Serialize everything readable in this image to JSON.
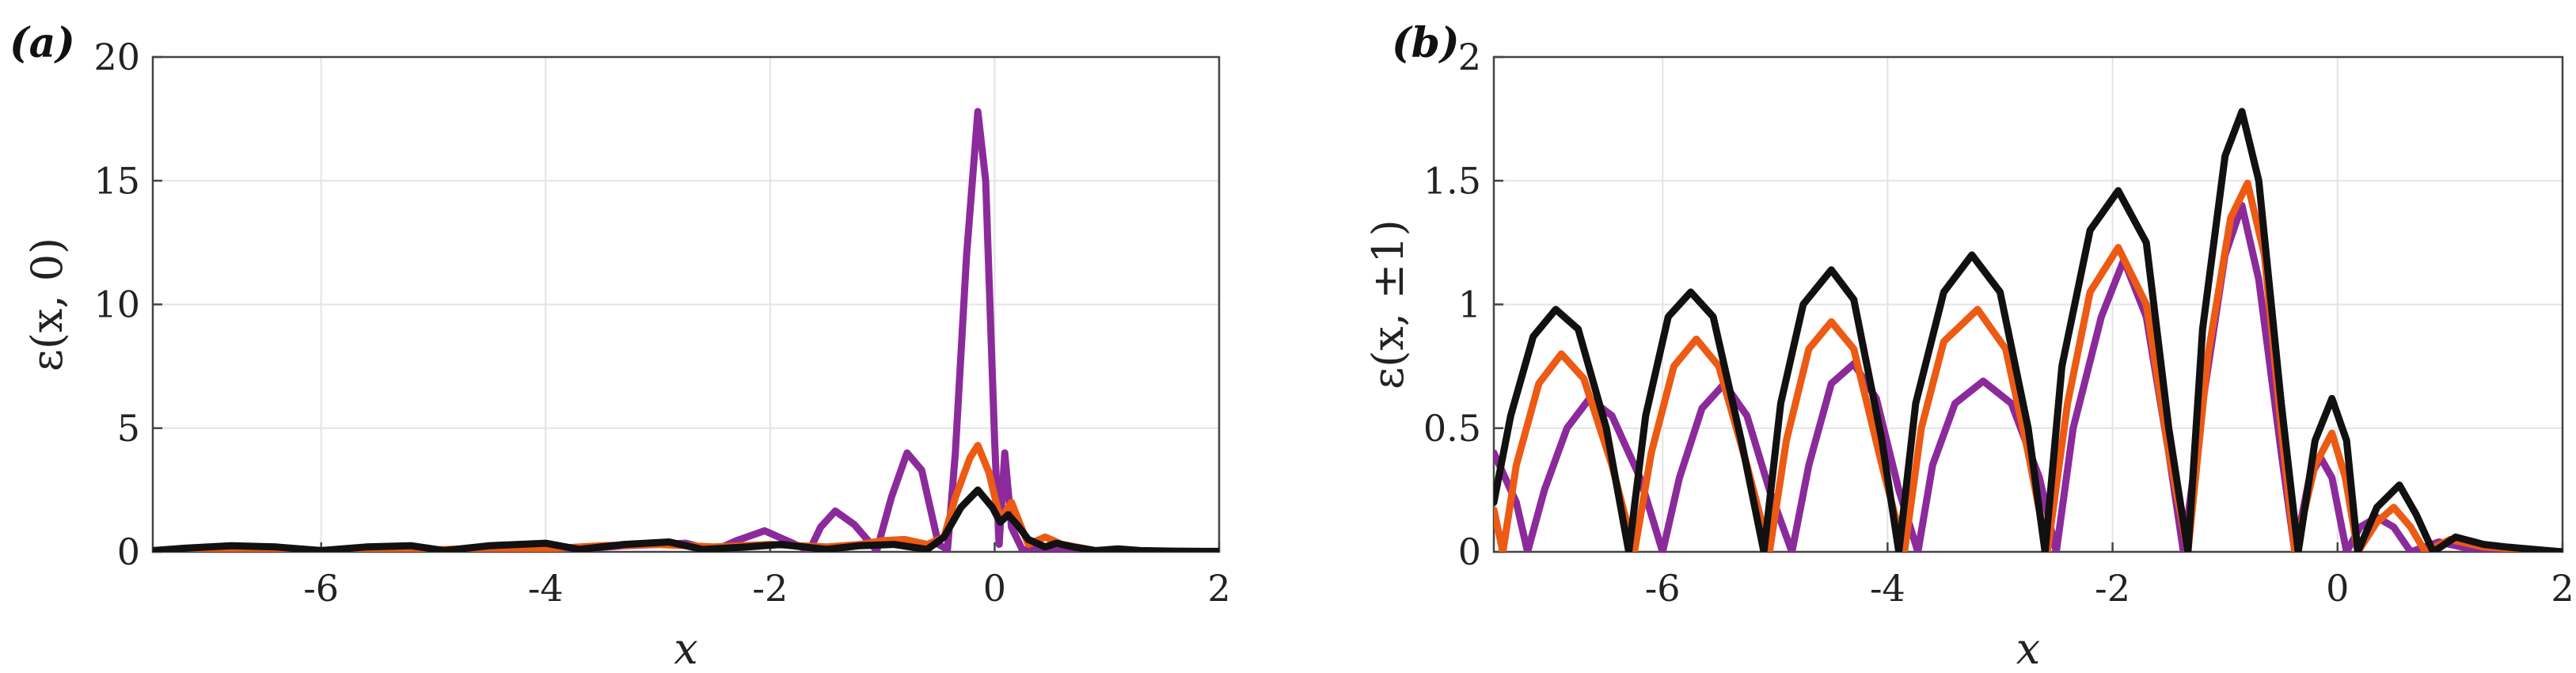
{
  "chart_data": [
    {
      "type": "line",
      "panel_label": "(a)",
      "xlabel": "x",
      "ylabel": "ε(x, 0)",
      "xlim": [
        -7.5,
        2
      ],
      "ylim": [
        0,
        20
      ],
      "xticks": [
        -6,
        -4,
        -2,
        0,
        2
      ],
      "yticks": [
        0,
        5,
        10,
        15,
        20
      ],
      "grid": true,
      "series": [
        {
          "name": "purple",
          "color": "#8B2A9B",
          "points": [
            [
              -7.5,
              0
            ],
            [
              -7.0,
              0.02
            ],
            [
              -6.5,
              0.05
            ],
            [
              -6.0,
              0.03
            ],
            [
              -5.5,
              0.06
            ],
            [
              -5.0,
              0.04
            ],
            [
              -4.5,
              0.08
            ],
            [
              -4.0,
              0.06
            ],
            [
              -3.6,
              0.15
            ],
            [
              -3.3,
              0.25
            ],
            [
              -3.0,
              0.3
            ],
            [
              -2.75,
              0.35
            ],
            [
              -2.5,
              0.05
            ],
            [
              -2.3,
              0.45
            ],
            [
              -2.05,
              0.85
            ],
            [
              -1.85,
              0.45
            ],
            [
              -1.65,
              0.05
            ],
            [
              -1.55,
              1.0
            ],
            [
              -1.42,
              1.65
            ],
            [
              -1.25,
              1.1
            ],
            [
              -1.05,
              0.05
            ],
            [
              -0.92,
              2.2
            ],
            [
              -0.78,
              4.0
            ],
            [
              -0.65,
              3.3
            ],
            [
              -0.5,
              0.3
            ],
            [
              -0.42,
              0.1
            ],
            [
              -0.35,
              4.0
            ],
            [
              -0.25,
              12.0
            ],
            [
              -0.15,
              17.8
            ],
            [
              -0.08,
              15.0
            ],
            [
              0.0,
              4.5
            ],
            [
              0.04,
              0.3
            ],
            [
              0.09,
              4.0
            ],
            [
              0.15,
              1.0
            ],
            [
              0.25,
              0.05
            ],
            [
              0.35,
              0.2
            ],
            [
              0.5,
              0.05
            ],
            [
              0.8,
              0.02
            ],
            [
              1.2,
              0.02
            ],
            [
              2.0,
              0.01
            ]
          ]
        },
        {
          "name": "orange",
          "color": "#EC5A14",
          "points": [
            [
              -7.5,
              0
            ],
            [
              -7.0,
              0.05
            ],
            [
              -6.5,
              0.08
            ],
            [
              -6.0,
              0.06
            ],
            [
              -5.5,
              0.1
            ],
            [
              -5.0,
              0.08
            ],
            [
              -4.5,
              0.15
            ],
            [
              -4.0,
              0.12
            ],
            [
              -3.5,
              0.25
            ],
            [
              -3.0,
              0.3
            ],
            [
              -2.5,
              0.2
            ],
            [
              -2.0,
              0.3
            ],
            [
              -1.5,
              0.2
            ],
            [
              -1.2,
              0.3
            ],
            [
              -1.0,
              0.45
            ],
            [
              -0.8,
              0.5
            ],
            [
              -0.6,
              0.3
            ],
            [
              -0.45,
              0.6
            ],
            [
              -0.35,
              2.2
            ],
            [
              -0.22,
              3.8
            ],
            [
              -0.15,
              4.3
            ],
            [
              -0.05,
              3.2
            ],
            [
              0.05,
              1.3
            ],
            [
              0.15,
              2.0
            ],
            [
              0.22,
              1.2
            ],
            [
              0.3,
              0.3
            ],
            [
              0.45,
              0.6
            ],
            [
              0.6,
              0.3
            ],
            [
              0.9,
              0.05
            ],
            [
              1.3,
              0.03
            ],
            [
              2.0,
              0.01
            ]
          ]
        },
        {
          "name": "black",
          "color": "#111111",
          "points": [
            [
              -7.5,
              0.05
            ],
            [
              -7.2,
              0.15
            ],
            [
              -6.8,
              0.25
            ],
            [
              -6.4,
              0.2
            ],
            [
              -6.0,
              0.05
            ],
            [
              -5.6,
              0.2
            ],
            [
              -5.2,
              0.25
            ],
            [
              -4.9,
              0.05
            ],
            [
              -4.5,
              0.25
            ],
            [
              -4.0,
              0.35
            ],
            [
              -3.7,
              0.1
            ],
            [
              -3.3,
              0.3
            ],
            [
              -2.9,
              0.4
            ],
            [
              -2.6,
              0.1
            ],
            [
              -2.2,
              0.2
            ],
            [
              -1.9,
              0.3
            ],
            [
              -1.5,
              0.1
            ],
            [
              -1.2,
              0.25
            ],
            [
              -0.9,
              0.3
            ],
            [
              -0.6,
              0.1
            ],
            [
              -0.45,
              0.6
            ],
            [
              -0.3,
              1.8
            ],
            [
              -0.15,
              2.5
            ],
            [
              -0.02,
              1.8
            ],
            [
              0.05,
              1.2
            ],
            [
              0.12,
              1.5
            ],
            [
              0.2,
              1.1
            ],
            [
              0.3,
              0.5
            ],
            [
              0.45,
              0.2
            ],
            [
              0.55,
              0.35
            ],
            [
              0.7,
              0.2
            ],
            [
              0.9,
              0.05
            ],
            [
              1.1,
              0.12
            ],
            [
              1.3,
              0.05
            ],
            [
              1.6,
              0.03
            ],
            [
              2.0,
              0.02
            ]
          ]
        }
      ]
    },
    {
      "type": "line",
      "panel_label": "(b)",
      "xlabel": "x",
      "ylabel": "ε(x, ±1)",
      "xlim": [
        -7.5,
        2
      ],
      "ylim": [
        0,
        2
      ],
      "xticks": [
        -6,
        -4,
        -2,
        0,
        2
      ],
      "yticks": [
        0,
        0.5,
        1,
        1.5,
        2
      ],
      "ytick_labels": [
        "0",
        "0.5",
        "1",
        "1.5",
        "2"
      ],
      "grid": true,
      "series": [
        {
          "name": "purple",
          "color": "#8B2A9B",
          "points": [
            [
              -7.5,
              0.4
            ],
            [
              -7.3,
              0.2
            ],
            [
              -7.2,
              0.0
            ],
            [
              -7.05,
              0.25
            ],
            [
              -6.85,
              0.5
            ],
            [
              -6.65,
              0.62
            ],
            [
              -6.45,
              0.55
            ],
            [
              -6.2,
              0.3
            ],
            [
              -6.0,
              0.0
            ],
            [
              -5.85,
              0.3
            ],
            [
              -5.65,
              0.58
            ],
            [
              -5.45,
              0.68
            ],
            [
              -5.25,
              0.55
            ],
            [
              -5.05,
              0.25
            ],
            [
              -4.85,
              0.0
            ],
            [
              -4.7,
              0.35
            ],
            [
              -4.5,
              0.68
            ],
            [
              -4.3,
              0.76
            ],
            [
              -4.1,
              0.62
            ],
            [
              -3.9,
              0.25
            ],
            [
              -3.73,
              0.0
            ],
            [
              -3.6,
              0.35
            ],
            [
              -3.4,
              0.6
            ],
            [
              -3.15,
              0.69
            ],
            [
              -2.9,
              0.6
            ],
            [
              -2.65,
              0.3
            ],
            [
              -2.5,
              0.0
            ],
            [
              -2.35,
              0.5
            ],
            [
              -2.1,
              0.95
            ],
            [
              -1.9,
              1.18
            ],
            [
              -1.7,
              0.95
            ],
            [
              -1.5,
              0.4
            ],
            [
              -1.37,
              0.0
            ],
            [
              -1.2,
              0.6
            ],
            [
              -1.0,
              1.2
            ],
            [
              -0.85,
              1.4
            ],
            [
              -0.7,
              1.1
            ],
            [
              -0.5,
              0.4
            ],
            [
              -0.38,
              0.0
            ],
            [
              -0.25,
              0.3
            ],
            [
              -0.15,
              0.38
            ],
            [
              -0.05,
              0.3
            ],
            [
              0.08,
              0.0
            ],
            [
              0.2,
              0.1
            ],
            [
              0.35,
              0.14
            ],
            [
              0.5,
              0.1
            ],
            [
              0.65,
              0.0
            ],
            [
              0.9,
              0.04
            ],
            [
              1.2,
              0.01
            ],
            [
              2.0,
              0.0
            ]
          ]
        },
        {
          "name": "orange",
          "color": "#EC5A14",
          "points": [
            [
              -7.5,
              0.17
            ],
            [
              -7.42,
              0.0
            ],
            [
              -7.3,
              0.35
            ],
            [
              -7.1,
              0.68
            ],
            [
              -6.9,
              0.8
            ],
            [
              -6.7,
              0.7
            ],
            [
              -6.45,
              0.35
            ],
            [
              -6.25,
              0.0
            ],
            [
              -6.1,
              0.4
            ],
            [
              -5.9,
              0.75
            ],
            [
              -5.7,
              0.86
            ],
            [
              -5.5,
              0.75
            ],
            [
              -5.25,
              0.35
            ],
            [
              -5.05,
              0.0
            ],
            [
              -4.9,
              0.45
            ],
            [
              -4.7,
              0.82
            ],
            [
              -4.5,
              0.93
            ],
            [
              -4.3,
              0.82
            ],
            [
              -4.05,
              0.35
            ],
            [
              -3.85,
              0.0
            ],
            [
              -3.7,
              0.5
            ],
            [
              -3.5,
              0.85
            ],
            [
              -3.2,
              0.98
            ],
            [
              -2.95,
              0.82
            ],
            [
              -2.75,
              0.4
            ],
            [
              -2.58,
              0.0
            ],
            [
              -2.4,
              0.6
            ],
            [
              -2.2,
              1.05
            ],
            [
              -1.95,
              1.23
            ],
            [
              -1.7,
              1.0
            ],
            [
              -1.5,
              0.4
            ],
            [
              -1.33,
              0.0
            ],
            [
              -1.15,
              0.8
            ],
            [
              -0.95,
              1.35
            ],
            [
              -0.8,
              1.49
            ],
            [
              -0.65,
              1.2
            ],
            [
              -0.5,
              0.5
            ],
            [
              -0.38,
              0.0
            ],
            [
              -0.2,
              0.35
            ],
            [
              -0.05,
              0.48
            ],
            [
              0.07,
              0.3
            ],
            [
              0.18,
              0.0
            ],
            [
              0.35,
              0.12
            ],
            [
              0.5,
              0.18
            ],
            [
              0.65,
              0.1
            ],
            [
              0.78,
              0.0
            ],
            [
              1.0,
              0.05
            ],
            [
              1.3,
              0.02
            ],
            [
              2.0,
              0.0
            ]
          ]
        },
        {
          "name": "black",
          "color": "#111111",
          "points": [
            [
              -7.5,
              0.2
            ],
            [
              -7.35,
              0.55
            ],
            [
              -7.15,
              0.87
            ],
            [
              -6.95,
              0.98
            ],
            [
              -6.75,
              0.9
            ],
            [
              -6.5,
              0.5
            ],
            [
              -6.3,
              0.0
            ],
            [
              -6.15,
              0.55
            ],
            [
              -5.95,
              0.95
            ],
            [
              -5.75,
              1.05
            ],
            [
              -5.55,
              0.95
            ],
            [
              -5.3,
              0.45
            ],
            [
              -5.1,
              0.0
            ],
            [
              -4.95,
              0.6
            ],
            [
              -4.75,
              1.0
            ],
            [
              -4.5,
              1.14
            ],
            [
              -4.3,
              1.02
            ],
            [
              -4.05,
              0.45
            ],
            [
              -3.9,
              0.0
            ],
            [
              -3.75,
              0.6
            ],
            [
              -3.5,
              1.05
            ],
            [
              -3.25,
              1.2
            ],
            [
              -3.0,
              1.05
            ],
            [
              -2.75,
              0.5
            ],
            [
              -2.6,
              0.0
            ],
            [
              -2.45,
              0.75
            ],
            [
              -2.2,
              1.3
            ],
            [
              -1.95,
              1.46
            ],
            [
              -1.7,
              1.25
            ],
            [
              -1.5,
              0.5
            ],
            [
              -1.33,
              0.0
            ],
            [
              -1.2,
              0.9
            ],
            [
              -1.0,
              1.6
            ],
            [
              -0.85,
              1.78
            ],
            [
              -0.7,
              1.5
            ],
            [
              -0.5,
              0.6
            ],
            [
              -0.35,
              0.0
            ],
            [
              -0.2,
              0.45
            ],
            [
              -0.05,
              0.62
            ],
            [
              0.08,
              0.45
            ],
            [
              0.18,
              0.0
            ],
            [
              0.35,
              0.18
            ],
            [
              0.55,
              0.27
            ],
            [
              0.7,
              0.15
            ],
            [
              0.85,
              0.0
            ],
            [
              1.05,
              0.06
            ],
            [
              1.3,
              0.03
            ],
            [
              1.5,
              0.02
            ],
            [
              2.0,
              0.0
            ]
          ]
        }
      ]
    }
  ]
}
